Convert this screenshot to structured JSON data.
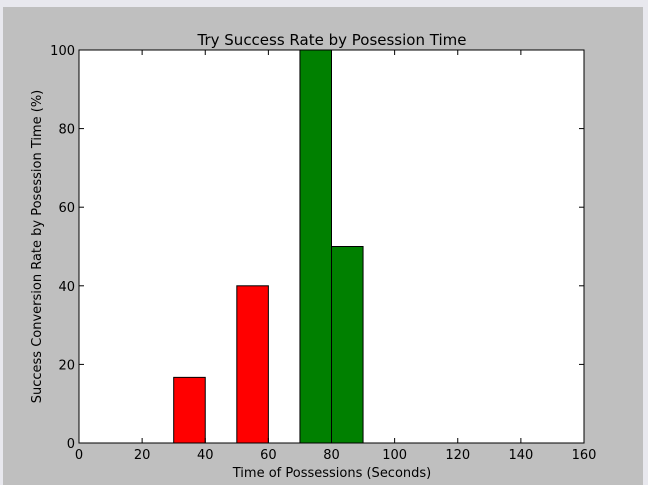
{
  "chart_data": {
    "type": "bar",
    "title": "Try Success Rate by Posession Time",
    "xlabel": "Time of Possessions (Seconds)",
    "ylabel": "Success Conversion Rate by Posession Time (%)",
    "xlim": [
      0,
      160
    ],
    "ylim": [
      0,
      100
    ],
    "xticks": [
      0,
      20,
      40,
      60,
      80,
      100,
      120,
      140,
      160
    ],
    "yticks": [
      0,
      20,
      40,
      60,
      80,
      100
    ],
    "grid": false,
    "bar_width": 10,
    "bars": [
      {
        "x": 0,
        "value": 0,
        "color": "#ff0000"
      },
      {
        "x": 10,
        "value": 0,
        "color": "#ff0000"
      },
      {
        "x": 20,
        "value": 0,
        "color": "#ff0000"
      },
      {
        "x": 30,
        "value": 16.7,
        "color": "#ff0000"
      },
      {
        "x": 50,
        "value": 40,
        "color": "#ff0000"
      },
      {
        "x": 70,
        "value": 100,
        "color": "#008000"
      },
      {
        "x": 80,
        "value": 50,
        "color": "#008000"
      },
      {
        "x": 90,
        "value": 0,
        "color": "#008000"
      },
      {
        "x": 100,
        "value": 0,
        "color": "#008000"
      },
      {
        "x": 110,
        "value": 0,
        "color": "#008000"
      },
      {
        "x": 120,
        "value": 0,
        "color": "#008000"
      },
      {
        "x": 130,
        "value": 0,
        "color": "#008000"
      },
      {
        "x": 140,
        "value": 0,
        "color": "#008000"
      }
    ]
  }
}
